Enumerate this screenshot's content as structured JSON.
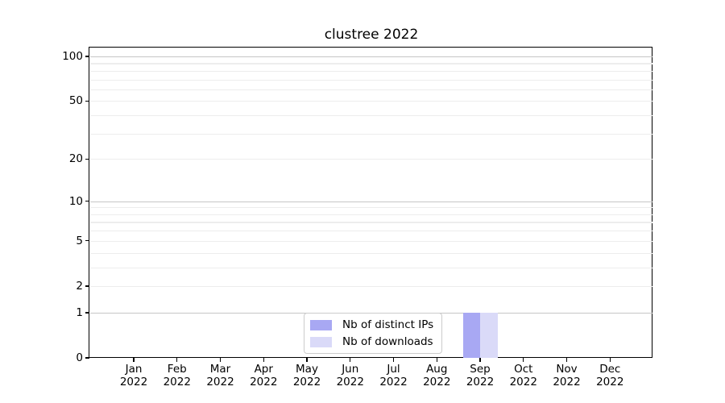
{
  "title": "clustree 2022",
  "chart_data": {
    "type": "bar",
    "title": "clustree 2022",
    "categories": [
      "Jan",
      "Feb",
      "Mar",
      "Apr",
      "May",
      "Jun",
      "Jul",
      "Aug",
      "Sep",
      "Oct",
      "Nov",
      "Dec"
    ],
    "category_year": "2022",
    "series": [
      {
        "name": "Nb of distinct IPs",
        "color": "#a8a8f3",
        "values": [
          0,
          0,
          0,
          0,
          0,
          0,
          0,
          0,
          1,
          0,
          0,
          0
        ]
      },
      {
        "name": "Nb of downloads",
        "color": "#dadaf8",
        "values": [
          0,
          0,
          0,
          0,
          0,
          0,
          0,
          0,
          1,
          0,
          0,
          0
        ]
      }
    ],
    "xlabel": "",
    "ylabel": "",
    "yscale": "log1p",
    "ylim": [
      0,
      113
    ],
    "y_ticks_labeled": [
      0,
      1,
      2,
      5,
      10,
      20,
      50,
      100
    ],
    "y_major_grid": [
      1,
      10,
      100
    ],
    "y_minor_grid": [
      2,
      3,
      4,
      5,
      6,
      7,
      8,
      9,
      20,
      30,
      40,
      50,
      60,
      70,
      80,
      90
    ],
    "grid": "horizontal",
    "legend_position": "inside-bottom-center"
  },
  "colors": {
    "background": "#ffffff",
    "axis": "#000000",
    "major_grid": "#c6c6c6",
    "minor_grid": "#ededed",
    "text": "#000000"
  }
}
